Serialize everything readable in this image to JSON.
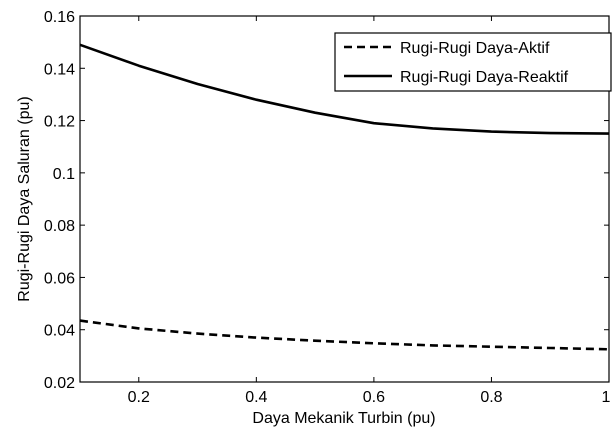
{
  "chart_data": {
    "type": "line",
    "title": "",
    "xlabel": "Daya Mekanik Turbin (pu)",
    "ylabel": "Rugi-Rugi Daya Saluran (pu)",
    "xlim": [
      0.1,
      1.0
    ],
    "ylim": [
      0.02,
      0.16
    ],
    "xticks": [
      0.2,
      0.4,
      0.6,
      0.8,
      1.0
    ],
    "xtick_labels": [
      "0.2",
      "0.4",
      "0.6",
      "0.8",
      "1"
    ],
    "yticks": [
      0.02,
      0.04,
      0.06,
      0.08,
      0.1,
      0.12,
      0.14,
      0.16
    ],
    "ytick_labels": [
      "0.02",
      "0.04",
      "0.06",
      "0.08",
      "0.1",
      "0.12",
      "0.14",
      "0.16"
    ],
    "grid": false,
    "legend_position": "top-right",
    "series": [
      {
        "name": "Rugi-Rugi Daya-Aktif",
        "style": "dashed",
        "color": "#000000",
        "x": [
          0.1,
          0.2,
          0.3,
          0.4,
          0.5,
          0.6,
          0.7,
          0.8,
          0.9,
          1.0
        ],
        "y": [
          0.0435,
          0.0405,
          0.0385,
          0.037,
          0.0358,
          0.0348,
          0.034,
          0.0335,
          0.033,
          0.0325
        ]
      },
      {
        "name": "Rugi-Rugi Daya-Reaktif",
        "style": "solid",
        "color": "#000000",
        "x": [
          0.1,
          0.2,
          0.3,
          0.4,
          0.5,
          0.6,
          0.7,
          0.8,
          0.9,
          1.0
        ],
        "y": [
          0.149,
          0.141,
          0.134,
          0.128,
          0.123,
          0.119,
          0.117,
          0.1158,
          0.1152,
          0.115
        ]
      }
    ]
  }
}
